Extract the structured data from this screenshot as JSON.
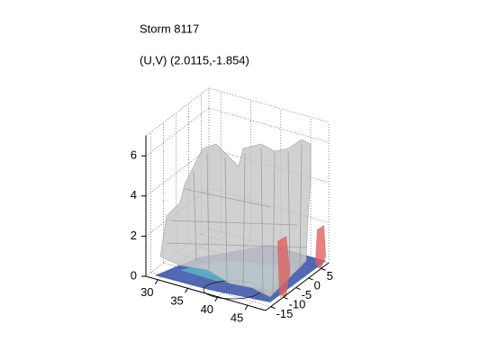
{
  "chart_data": {
    "type": "surface3d",
    "title": "Storm 8117",
    "subtitle": "(U,V) (2.0115,-1.854)",
    "xlim": [
      28,
      48
    ],
    "xticks": [
      30,
      35,
      40,
      45
    ],
    "ylim": [
      -17,
      8
    ],
    "yticks": [
      -15,
      -10,
      -5,
      0,
      5
    ],
    "zlim": [
      0,
      7
    ],
    "zticks": [
      0,
      2,
      4,
      6
    ],
    "grid": true
  }
}
